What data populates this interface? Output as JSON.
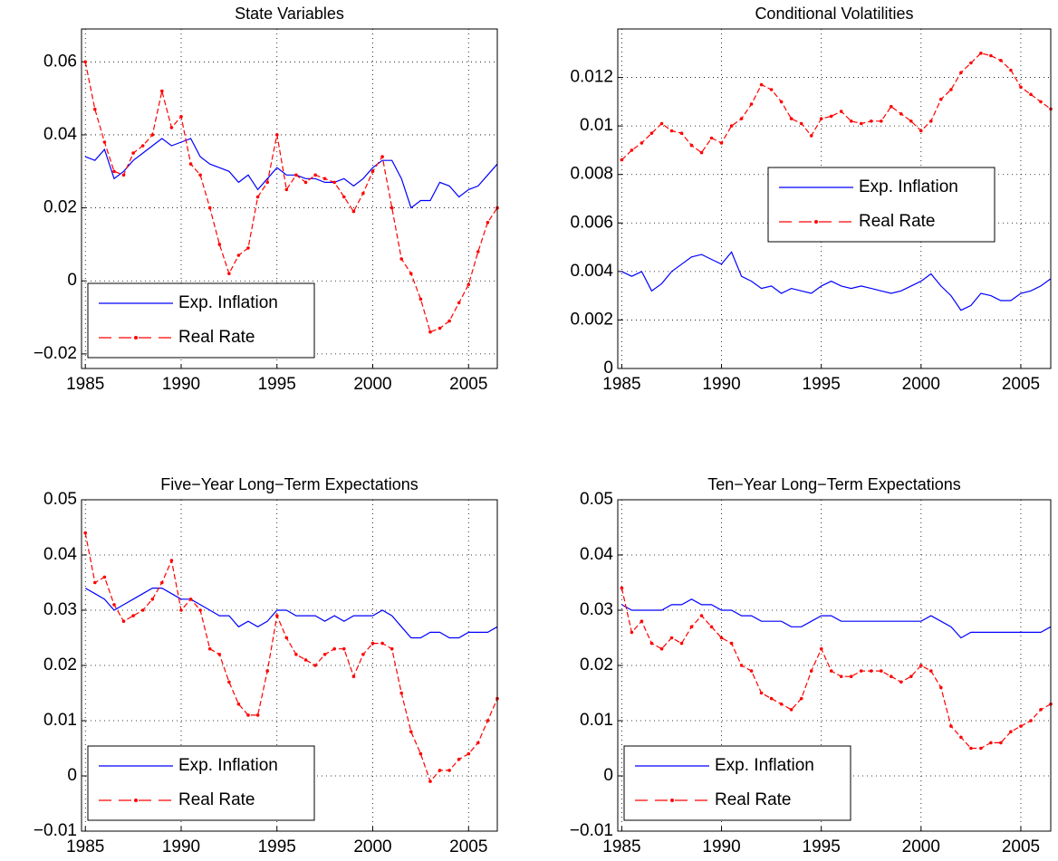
{
  "chart_data": [
    {
      "type": "line",
      "title": "State Variables",
      "x": [
        1985,
        1985.5,
        1986,
        1986.5,
        1987,
        1987.5,
        1988,
        1988.5,
        1989,
        1989.5,
        1990,
        1990.5,
        1991,
        1991.5,
        1992,
        1992.5,
        1993,
        1993.5,
        1994,
        1994.5,
        1995,
        1995.5,
        1996,
        1996.5,
        1997,
        1997.5,
        1998,
        1998.5,
        1999,
        1999.5,
        2000,
        2000.5,
        2001,
        2001.5,
        2002,
        2002.5,
        2003,
        2003.5,
        2004,
        2004.5,
        2005,
        2005.5,
        2006,
        2006.5
      ],
      "series": [
        {
          "name": "Exp. Inflation",
          "color": "#0000ff",
          "values": [
            0.034,
            0.033,
            0.036,
            0.028,
            0.03,
            0.033,
            0.035,
            0.037,
            0.039,
            0.037,
            0.038,
            0.039,
            0.034,
            0.032,
            0.031,
            0.03,
            0.027,
            0.029,
            0.025,
            0.028,
            0.031,
            0.029,
            0.029,
            0.028,
            0.028,
            0.027,
            0.027,
            0.028,
            0.026,
            0.028,
            0.031,
            0.033,
            0.033,
            0.028,
            0.02,
            0.022,
            0.022,
            0.027,
            0.026,
            0.023,
            0.025,
            0.026,
            0.029,
            0.032
          ]
        },
        {
          "name": "Real Rate",
          "color": "#ff0000",
          "values": [
            0.06,
            0.047,
            0.038,
            0.03,
            0.029,
            0.035,
            0.037,
            0.04,
            0.052,
            0.042,
            0.045,
            0.032,
            0.029,
            0.02,
            0.01,
            0.002,
            0.007,
            0.009,
            0.023,
            0.027,
            0.04,
            0.025,
            0.029,
            0.027,
            0.029,
            0.028,
            0.027,
            0.023,
            0.019,
            0.024,
            0.03,
            0.034,
            0.02,
            0.006,
            0.002,
            -0.005,
            -0.014,
            -0.013,
            -0.011,
            -0.006,
            -0.001,
            0.008,
            0.016,
            0.02
          ]
        }
      ],
      "xlim": [
        1984.8,
        2006.5
      ],
      "xticks": [
        1985,
        1990,
        1995,
        2000,
        2005
      ],
      "ylim": [
        -0.024,
        0.069
      ],
      "yticks": [
        {
          "value": -0.02,
          "label": "−0.02"
        },
        0,
        0.02,
        0.04,
        0.06
      ],
      "grid": true,
      "legend": "lower left"
    },
    {
      "type": "line",
      "title": "Conditional Volatilities",
      "x": [
        1985,
        1985.5,
        1986,
        1986.5,
        1987,
        1987.5,
        1988,
        1988.5,
        1989,
        1989.5,
        1990,
        1990.5,
        1991,
        1991.5,
        1992,
        1992.5,
        1993,
        1993.5,
        1994,
        1994.5,
        1995,
        1995.5,
        1996,
        1996.5,
        1997,
        1997.5,
        1998,
        1998.5,
        1999,
        1999.5,
        2000,
        2000.5,
        2001,
        2001.5,
        2002,
        2002.5,
        2003,
        2003.5,
        2004,
        2004.5,
        2005,
        2005.5,
        2006,
        2006.5
      ],
      "series": [
        {
          "name": "Exp. Inflation",
          "color": "#0000ff",
          "values": [
            0.004,
            0.0038,
            0.004,
            0.0032,
            0.0035,
            0.004,
            0.0043,
            0.0046,
            0.0047,
            0.0045,
            0.0043,
            0.0048,
            0.0038,
            0.0036,
            0.0033,
            0.0034,
            0.0031,
            0.0033,
            0.0032,
            0.0031,
            0.0034,
            0.0036,
            0.0034,
            0.0033,
            0.0034,
            0.0033,
            0.0032,
            0.0031,
            0.0032,
            0.0034,
            0.0036,
            0.0039,
            0.0034,
            0.003,
            0.0024,
            0.0026,
            0.0031,
            0.003,
            0.0028,
            0.0028,
            0.0031,
            0.0032,
            0.0034,
            0.0037
          ]
        },
        {
          "name": "Real Rate",
          "color": "#ff0000",
          "values": [
            0.0086,
            0.009,
            0.0093,
            0.0097,
            0.0101,
            0.0098,
            0.0097,
            0.0092,
            0.0089,
            0.0095,
            0.0093,
            0.01,
            0.0103,
            0.0109,
            0.0117,
            0.0115,
            0.011,
            0.0103,
            0.0101,
            0.0096,
            0.0103,
            0.0104,
            0.0106,
            0.0102,
            0.0101,
            0.0102,
            0.0102,
            0.0108,
            0.0105,
            0.0102,
            0.0098,
            0.0102,
            0.0111,
            0.0115,
            0.0122,
            0.0126,
            0.013,
            0.0129,
            0.0127,
            0.0123,
            0.0116,
            0.0113,
            0.011,
            0.0107
          ]
        }
      ],
      "xlim": [
        1984.8,
        2006.5
      ],
      "xticks": [
        1985,
        1990,
        1995,
        2000,
        2005
      ],
      "ylim": [
        0,
        0.014
      ],
      "yticks": [
        0,
        0.002,
        0.004,
        0.006,
        0.008,
        0.01,
        0.012
      ],
      "grid": true,
      "legend": "center right"
    },
    {
      "type": "line",
      "title": "Five−Year Long−Term Expectations",
      "x": [
        1985,
        1985.5,
        1986,
        1986.5,
        1987,
        1987.5,
        1988,
        1988.5,
        1989,
        1989.5,
        1990,
        1990.5,
        1991,
        1991.5,
        1992,
        1992.5,
        1993,
        1993.5,
        1994,
        1994.5,
        1995,
        1995.5,
        1996,
        1996.5,
        1997,
        1997.5,
        1998,
        1998.5,
        1999,
        1999.5,
        2000,
        2000.5,
        2001,
        2001.5,
        2002,
        2002.5,
        2003,
        2003.5,
        2004,
        2004.5,
        2005,
        2005.5,
        2006,
        2006.5
      ],
      "series": [
        {
          "name": "Exp. Inflation",
          "color": "#0000ff",
          "values": [
            0.034,
            0.033,
            0.032,
            0.03,
            0.031,
            0.032,
            0.033,
            0.034,
            0.034,
            0.033,
            0.032,
            0.032,
            0.031,
            0.03,
            0.029,
            0.029,
            0.027,
            0.028,
            0.027,
            0.028,
            0.03,
            0.03,
            0.029,
            0.029,
            0.029,
            0.028,
            0.029,
            0.028,
            0.029,
            0.029,
            0.029,
            0.03,
            0.029,
            0.027,
            0.025,
            0.025,
            0.026,
            0.026,
            0.025,
            0.025,
            0.026,
            0.026,
            0.026,
            0.027
          ]
        },
        {
          "name": "Real Rate",
          "color": "#ff0000",
          "values": [
            0.044,
            0.035,
            0.036,
            0.031,
            0.028,
            0.029,
            0.03,
            0.032,
            0.035,
            0.039,
            0.03,
            0.032,
            0.03,
            0.023,
            0.022,
            0.017,
            0.013,
            0.011,
            0.011,
            0.019,
            0.029,
            0.025,
            0.022,
            0.021,
            0.02,
            0.022,
            0.023,
            0.023,
            0.018,
            0.022,
            0.024,
            0.024,
            0.023,
            0.015,
            0.008,
            0.004,
            -0.001,
            0.001,
            0.001,
            0.003,
            0.004,
            0.006,
            0.01,
            0.014
          ]
        }
      ],
      "xlim": [
        1984.8,
        2006.5
      ],
      "xticks": [
        1985,
        1990,
        1995,
        2000,
        2005
      ],
      "ylim": [
        -0.01,
        0.05
      ],
      "yticks": [
        {
          "value": -0.01,
          "label": "−0.01"
        },
        0,
        0.01,
        0.02,
        0.03,
        0.04,
        0.05
      ],
      "grid": true,
      "legend": "lower left"
    },
    {
      "type": "line",
      "title": "Ten−Year Long−Term Expectations",
      "x": [
        1985,
        1985.5,
        1986,
        1986.5,
        1987,
        1987.5,
        1988,
        1988.5,
        1989,
        1989.5,
        1990,
        1990.5,
        1991,
        1991.5,
        1992,
        1992.5,
        1993,
        1993.5,
        1994,
        1994.5,
        1995,
        1995.5,
        1996,
        1996.5,
        1997,
        1997.5,
        1998,
        1998.5,
        1999,
        1999.5,
        2000,
        2000.5,
        2001,
        2001.5,
        2002,
        2002.5,
        2003,
        2003.5,
        2004,
        2004.5,
        2005,
        2005.5,
        2006,
        2006.5
      ],
      "series": [
        {
          "name": "Exp. Inflation",
          "color": "#0000ff",
          "values": [
            0.031,
            0.03,
            0.03,
            0.03,
            0.03,
            0.031,
            0.031,
            0.032,
            0.031,
            0.031,
            0.03,
            0.03,
            0.029,
            0.029,
            0.028,
            0.028,
            0.028,
            0.027,
            0.027,
            0.028,
            0.029,
            0.029,
            0.028,
            0.028,
            0.028,
            0.028,
            0.028,
            0.028,
            0.028,
            0.028,
            0.028,
            0.029,
            0.028,
            0.027,
            0.025,
            0.026,
            0.026,
            0.026,
            0.026,
            0.026,
            0.026,
            0.026,
            0.026,
            0.027
          ]
        },
        {
          "name": "Real Rate",
          "color": "#ff0000",
          "values": [
            0.034,
            0.026,
            0.028,
            0.024,
            0.023,
            0.025,
            0.024,
            0.027,
            0.029,
            0.027,
            0.025,
            0.024,
            0.02,
            0.019,
            0.015,
            0.014,
            0.013,
            0.012,
            0.014,
            0.019,
            0.023,
            0.019,
            0.018,
            0.018,
            0.019,
            0.019,
            0.019,
            0.018,
            0.017,
            0.018,
            0.02,
            0.019,
            0.016,
            0.009,
            0.007,
            0.005,
            0.005,
            0.006,
            0.006,
            0.008,
            0.009,
            0.01,
            0.012,
            0.013
          ]
        }
      ],
      "xlim": [
        1984.8,
        2006.5
      ],
      "xticks": [
        1985,
        1990,
        1995,
        2000,
        2005
      ],
      "ylim": [
        -0.01,
        0.05
      ],
      "yticks": [
        {
          "value": -0.01,
          "label": "−0.01"
        },
        0,
        0.01,
        0.02,
        0.03,
        0.04,
        0.05
      ],
      "grid": true,
      "legend": "lower left"
    }
  ]
}
